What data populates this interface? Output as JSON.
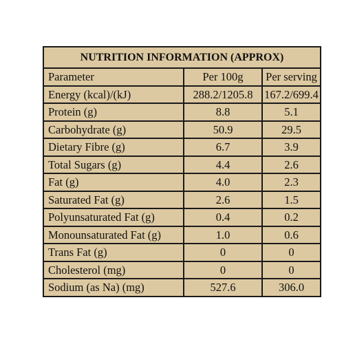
{
  "table": {
    "title": "NUTRITION INFORMATION (APPROX)",
    "header": [
      "Parameter",
      "Per 100g",
      "Per serving"
    ],
    "rows": [
      [
        "Energy (kcal)/(kJ)",
        "288.2/1205.8",
        "167.2/699.4"
      ],
      [
        "Protein (g)",
        "8.8",
        "5.1"
      ],
      [
        "Carbohydrate (g)",
        "50.9",
        "29.5"
      ],
      [
        "Dietary Fibre (g)",
        "6.7",
        "3.9"
      ],
      [
        "Total Sugars (g)",
        "4.4",
        "2.6"
      ],
      [
        "Fat (g)",
        "4.0",
        "2.3"
      ],
      [
        "Saturated Fat (g)",
        "2.6",
        "1.5"
      ],
      [
        "Polyunsaturated Fat (g)",
        "0.4",
        "0.2"
      ],
      [
        "Monounsaturated Fat (g)",
        "1.0",
        "0.6"
      ],
      [
        "Trans Fat (g)",
        "0",
        "0"
      ],
      [
        "Cholesterol (mg)",
        "0",
        "0"
      ],
      [
        "Sodium (as Na) (mg)",
        "527.6",
        "306.0"
      ]
    ]
  }
}
